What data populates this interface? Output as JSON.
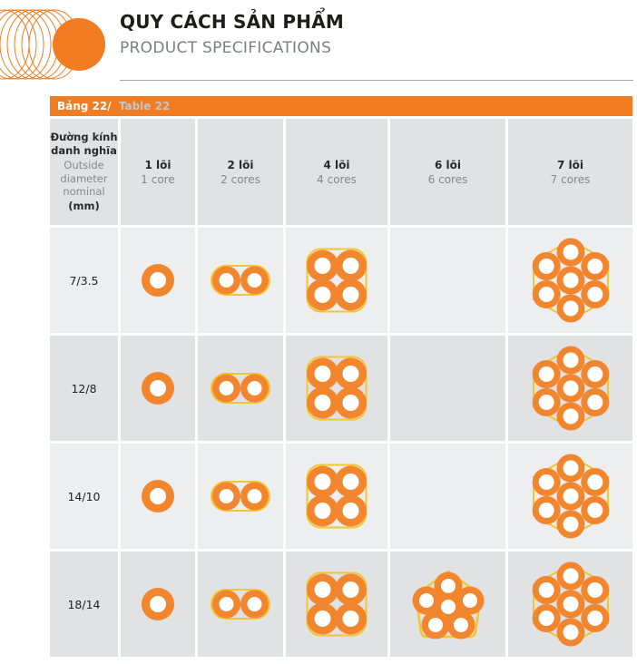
{
  "header": {
    "title_vn": "QUY CÁCH SẢN PHẨM",
    "title_en": "PRODUCT SPECIFICATIONS"
  },
  "table": {
    "bar": {
      "label_vn": "Bảng 22/",
      "label_en": "Table 22"
    },
    "header": {
      "label_col": {
        "vn": "Đường kính danh nghĩa",
        "en": "Outside diameter nominal",
        "unit": "(mm)"
      },
      "cols": [
        {
          "vn": "1 lõi",
          "en": "1 core",
          "type": "core1"
        },
        {
          "vn": "2 lõi",
          "en": "2 cores",
          "type": "core2"
        },
        {
          "vn": "4 lõi",
          "en": "4 cores",
          "type": "core4"
        },
        {
          "vn": "6 lõi",
          "en": "6 cores",
          "type": "core6"
        },
        {
          "vn": "7 lõi",
          "en": "7 cores",
          "type": "core7"
        }
      ]
    },
    "rows": [
      {
        "label": "7/3.5",
        "cells": [
          "core1",
          "core2",
          "core4",
          "",
          "core7"
        ]
      },
      {
        "label": "12/8",
        "cells": [
          "core1",
          "core2",
          "core4",
          "",
          "core7"
        ]
      },
      {
        "label": "14/10",
        "cells": [
          "core1",
          "core2",
          "core4",
          "",
          "core7"
        ]
      },
      {
        "label": "18/14",
        "cells": [
          "core1",
          "core2",
          "core4",
          "core6",
          "core7"
        ]
      }
    ]
  },
  "colors": {
    "orange": "#F17C21",
    "ring_orange": "#F2862F",
    "gold_outline": "#F3C62F",
    "row_light": "#EDEEF0",
    "row_dark": "#E0E2E4",
    "hole_white": "#FFFFFF"
  }
}
